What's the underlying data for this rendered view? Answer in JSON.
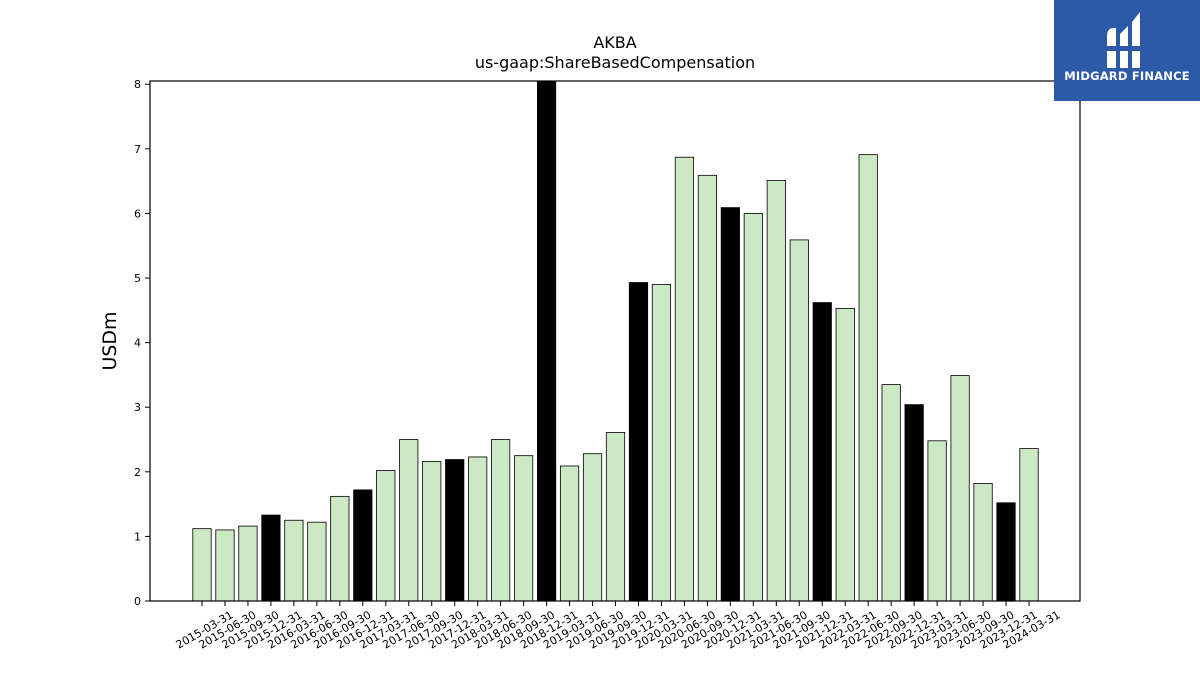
{
  "brand": {
    "name": "MIDGARD FINANCE",
    "logo_icon": "midgard-m-logo-icon",
    "color": "#2d5aa8"
  },
  "chart_data": {
    "type": "bar",
    "title": "AKBA",
    "subtitle": "us-gaap:ShareBasedCompensation",
    "xlabel": "",
    "ylabel": "USDm",
    "ylim": [
      0,
      8.05
    ],
    "yticks": [
      0,
      1,
      2,
      3,
      4,
      5,
      6,
      7,
      8
    ],
    "grid": false,
    "colors": {
      "quarter": "#cce8c4",
      "year_end": "#000000",
      "edge": "#000000"
    },
    "categories": [
      "2015-03-31",
      "2015-06-30",
      "2015-09-30",
      "2015-12-31",
      "2016-03-31",
      "2016-06-30",
      "2016-09-30",
      "2016-12-31",
      "2017-03-31",
      "2017-06-30",
      "2017-09-30",
      "2017-12-31",
      "2018-03-31",
      "2018-06-30",
      "2018-09-30",
      "2018-12-31",
      "2019-03-31",
      "2019-06-30",
      "2019-09-30",
      "2019-12-31",
      "2020-03-31",
      "2020-06-30",
      "2020-09-30",
      "2020-12-31",
      "2021-03-31",
      "2021-06-30",
      "2021-09-30",
      "2021-12-31",
      "2022-03-31",
      "2022-06-30",
      "2022-09-30",
      "2022-12-31",
      "2023-03-31",
      "2023-06-30",
      "2023-09-30",
      "2023-12-31",
      "2024-03-31"
    ],
    "values": [
      1.12,
      1.1,
      1.16,
      1.33,
      1.25,
      1.22,
      1.62,
      1.72,
      2.02,
      2.5,
      2.16,
      2.19,
      2.23,
      2.5,
      2.25,
      8.1,
      2.09,
      2.28,
      2.61,
      4.93,
      4.9,
      6.87,
      6.59,
      6.09,
      6.0,
      6.51,
      5.59,
      4.62,
      4.53,
      6.91,
      3.35,
      3.04,
      2.48,
      3.49,
      1.82,
      1.52,
      2.36
    ]
  }
}
